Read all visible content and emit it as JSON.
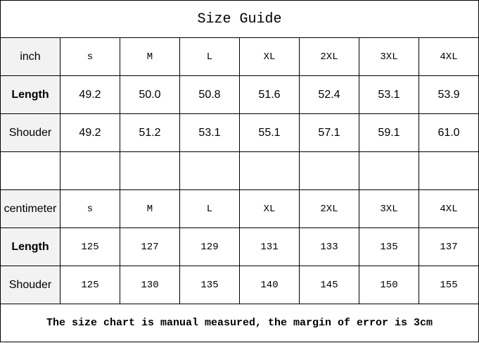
{
  "title": "Size Guide",
  "inch": {
    "unit": "inch",
    "sizes": [
      "s",
      "M",
      "L",
      "XL",
      "2XL",
      "3XL",
      "4XL"
    ],
    "rows": [
      {
        "label": "Length",
        "values": [
          "49.2",
          "50.0",
          "50.8",
          "51.6",
          "52.4",
          "53.1",
          "53.9"
        ]
      },
      {
        "label": "Shouder",
        "values": [
          "49.2",
          "51.2",
          "53.1",
          "55.1",
          "57.1",
          "59.1",
          "61.0"
        ]
      }
    ]
  },
  "cm": {
    "unit": "centimeter",
    "sizes": [
      "s",
      "M",
      "L",
      "XL",
      "2XL",
      "3XL",
      "4XL"
    ],
    "rows": [
      {
        "label": "Length",
        "values": [
          "125",
          "127",
          "129",
          "131",
          "133",
          "135",
          "137"
        ]
      },
      {
        "label": "Shouder",
        "values": [
          "125",
          "130",
          "135",
          "140",
          "145",
          "150",
          "155"
        ]
      }
    ]
  },
  "footer": "The size chart is manual measured, the margin of error is 3cm"
}
